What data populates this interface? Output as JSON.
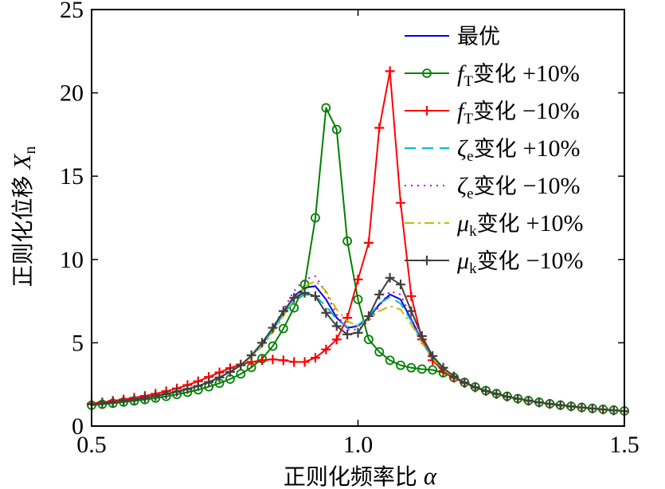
{
  "chart_data": {
    "type": "line",
    "title": "",
    "xlabel": "正则化频率比",
    "xlabel_symbol": "α",
    "ylabel": "正则化位移",
    "ylabel_symbol": "X",
    "ylabel_subscript": "n",
    "xlim": [
      0.5,
      1.5
    ],
    "ylim": [
      0,
      25
    ],
    "xticks": [
      0.5,
      1.0,
      1.5
    ],
    "xtick_labels": [
      "0.5",
      "1.0",
      "1.5"
    ],
    "yticks": [
      0,
      5,
      10,
      15,
      20,
      25
    ],
    "ytick_labels": [
      "0",
      "5",
      "10",
      "15",
      "20",
      "25"
    ],
    "grid": false,
    "legend_position": "top-right",
    "series": [
      {
        "name": "最优",
        "legend": {
          "symbol": "",
          "sub": "",
          "change": "最优",
          "pct": ""
        },
        "color": "#0000ee",
        "dash": "",
        "marker": "none",
        "width": 2,
        "x": [
          0.5,
          0.52,
          0.54,
          0.56,
          0.58,
          0.6,
          0.62,
          0.64,
          0.66,
          0.68,
          0.7,
          0.72,
          0.74,
          0.76,
          0.78,
          0.8,
          0.82,
          0.84,
          0.86,
          0.88,
          0.9,
          0.92,
          0.94,
          0.96,
          0.98,
          1.0,
          1.02,
          1.04,
          1.06,
          1.08,
          1.1,
          1.12,
          1.14,
          1.16,
          1.18,
          1.2,
          1.22,
          1.24,
          1.26,
          1.28,
          1.3,
          1.32,
          1.34,
          1.36,
          1.38,
          1.4,
          1.42,
          1.44,
          1.46,
          1.48,
          1.5
        ],
        "y": [
          1.3,
          1.37,
          1.44,
          1.52,
          1.6,
          1.69,
          1.8,
          1.92,
          2.06,
          2.22,
          2.41,
          2.64,
          2.92,
          3.25,
          3.65,
          4.2,
          4.9,
          5.8,
          6.8,
          7.8,
          8.3,
          8.4,
          7.6,
          6.5,
          5.9,
          6.0,
          6.5,
          7.3,
          7.9,
          7.6,
          6.4,
          5.1,
          4.1,
          3.45,
          2.95,
          2.6,
          2.32,
          2.1,
          1.92,
          1.77,
          1.64,
          1.53,
          1.43,
          1.34,
          1.26,
          1.19,
          1.12,
          1.06,
          1.0,
          0.95,
          0.9
        ]
      },
      {
        "name": "fT变化 +10%",
        "legend": {
          "symbol": "f",
          "sub": "T",
          "change": "变化",
          "pct": "+10%"
        },
        "color": "#008000",
        "dash": "",
        "marker": "circle",
        "width": 2,
        "x": [
          0.5,
          0.52,
          0.54,
          0.56,
          0.58,
          0.6,
          0.62,
          0.64,
          0.66,
          0.68,
          0.7,
          0.72,
          0.74,
          0.76,
          0.78,
          0.8,
          0.82,
          0.84,
          0.86,
          0.88,
          0.9,
          0.92,
          0.94,
          0.96,
          0.98,
          1.0,
          1.02,
          1.04,
          1.06,
          1.08,
          1.1,
          1.12,
          1.14,
          1.16,
          1.18,
          1.2,
          1.22,
          1.24,
          1.26,
          1.28,
          1.3,
          1.32,
          1.34,
          1.36,
          1.38,
          1.4,
          1.42,
          1.44,
          1.46,
          1.48,
          1.5
        ],
        "y": [
          1.25,
          1.31,
          1.37,
          1.44,
          1.51,
          1.59,
          1.68,
          1.78,
          1.9,
          2.03,
          2.18,
          2.36,
          2.57,
          2.82,
          3.13,
          3.52,
          4.05,
          4.8,
          5.85,
          7.1,
          8.5,
          12.5,
          19.1,
          17.8,
          11.1,
          7.6,
          5.2,
          4.45,
          3.95,
          3.65,
          3.5,
          3.42,
          3.37,
          3.2,
          2.92,
          2.62,
          2.35,
          2.13,
          1.95,
          1.79,
          1.65,
          1.53,
          1.43,
          1.34,
          1.26,
          1.19,
          1.12,
          1.06,
          1.01,
          0.96,
          0.91
        ]
      },
      {
        "name": "fT变化 -10%",
        "legend": {
          "symbol": "f",
          "sub": "T",
          "change": "变化",
          "pct": "−10%"
        },
        "color": "#ff0000",
        "dash": "",
        "marker": "plus",
        "width": 2,
        "x": [
          0.5,
          0.52,
          0.54,
          0.56,
          0.58,
          0.6,
          0.62,
          0.64,
          0.66,
          0.68,
          0.7,
          0.72,
          0.74,
          0.76,
          0.78,
          0.8,
          0.82,
          0.84,
          0.86,
          0.88,
          0.9,
          0.92,
          0.94,
          0.96,
          0.98,
          1.0,
          1.02,
          1.04,
          1.06,
          1.08,
          1.1,
          1.12,
          1.14,
          1.16,
          1.18,
          1.2,
          1.22,
          1.24,
          1.26,
          1.28,
          1.3,
          1.32,
          1.34,
          1.36,
          1.38,
          1.4,
          1.42,
          1.44,
          1.46,
          1.48,
          1.5
        ],
        "y": [
          1.35,
          1.43,
          1.51,
          1.6,
          1.7,
          1.81,
          1.94,
          2.09,
          2.26,
          2.46,
          2.69,
          2.95,
          3.22,
          3.48,
          3.7,
          3.85,
          3.95,
          4.0,
          3.95,
          3.85,
          3.85,
          4.1,
          4.6,
          5.2,
          6.5,
          8.8,
          11.0,
          17.9,
          21.3,
          13.4,
          7.8,
          5.2,
          3.95,
          3.3,
          2.9,
          2.58,
          2.32,
          2.1,
          1.92,
          1.76,
          1.63,
          1.51,
          1.41,
          1.32,
          1.24,
          1.17,
          1.11,
          1.05,
          0.99,
          0.94,
          0.89
        ]
      },
      {
        "name": "ζe变化 +10%",
        "legend": {
          "symbol": "ζ",
          "sub": "e",
          "change": "变化",
          "pct": "+10%"
        },
        "color": "#00bfbf",
        "dash": "14,8",
        "marker": "none",
        "width": 2,
        "x": [
          0.5,
          0.52,
          0.54,
          0.56,
          0.58,
          0.6,
          0.62,
          0.64,
          0.66,
          0.68,
          0.7,
          0.72,
          0.74,
          0.76,
          0.78,
          0.8,
          0.82,
          0.84,
          0.86,
          0.88,
          0.9,
          0.92,
          0.94,
          0.96,
          0.98,
          1.0,
          1.02,
          1.04,
          1.06,
          1.08,
          1.1,
          1.12,
          1.14,
          1.16,
          1.18,
          1.2,
          1.22,
          1.24,
          1.26,
          1.28,
          1.3,
          1.32,
          1.34,
          1.36,
          1.38,
          1.4,
          1.42,
          1.44,
          1.46,
          1.48,
          1.5
        ],
        "y": [
          1.3,
          1.37,
          1.44,
          1.52,
          1.6,
          1.69,
          1.8,
          1.92,
          2.06,
          2.22,
          2.41,
          2.64,
          2.92,
          3.25,
          3.65,
          4.2,
          4.9,
          5.75,
          6.7,
          7.5,
          7.9,
          7.8,
          7.2,
          6.4,
          5.95,
          6.05,
          6.6,
          7.35,
          7.75,
          7.35,
          6.3,
          5.05,
          4.05,
          3.42,
          2.95,
          2.6,
          2.32,
          2.1,
          1.92,
          1.77,
          1.64,
          1.53,
          1.43,
          1.34,
          1.26,
          1.19,
          1.12,
          1.06,
          1.0,
          0.95,
          0.9
        ]
      },
      {
        "name": "ζe变化 -10%",
        "legend": {
          "symbol": "ζ",
          "sub": "e",
          "change": "变化",
          "pct": "−10%"
        },
        "color": "#bf00bf",
        "dash": "2,6",
        "marker": "none",
        "width": 2,
        "x": [
          0.5,
          0.52,
          0.54,
          0.56,
          0.58,
          0.6,
          0.62,
          0.64,
          0.66,
          0.68,
          0.7,
          0.72,
          0.74,
          0.76,
          0.78,
          0.8,
          0.82,
          0.84,
          0.86,
          0.88,
          0.9,
          0.92,
          0.94,
          0.96,
          0.98,
          1.0,
          1.02,
          1.04,
          1.06,
          1.08,
          1.1,
          1.12,
          1.14,
          1.16,
          1.18,
          1.2,
          1.22,
          1.24,
          1.26,
          1.28,
          1.3,
          1.32,
          1.34,
          1.36,
          1.38,
          1.4,
          1.42,
          1.44,
          1.46,
          1.48,
          1.5
        ],
        "y": [
          1.3,
          1.37,
          1.44,
          1.52,
          1.6,
          1.69,
          1.8,
          1.92,
          2.06,
          2.22,
          2.41,
          2.64,
          2.92,
          3.25,
          3.65,
          4.2,
          4.9,
          5.9,
          7.0,
          8.1,
          8.8,
          9.0,
          8.0,
          6.7,
          5.8,
          5.8,
          6.3,
          7.2,
          8.1,
          7.9,
          6.5,
          5.15,
          4.1,
          3.45,
          2.95,
          2.6,
          2.32,
          2.1,
          1.92,
          1.77,
          1.64,
          1.53,
          1.43,
          1.34,
          1.26,
          1.19,
          1.12,
          1.06,
          1.0,
          0.95,
          0.9
        ]
      },
      {
        "name": "μk变化 +10%",
        "legend": {
          "symbol": "μ",
          "sub": "k",
          "change": "变化",
          "pct": "+10%"
        },
        "color": "#bfbf00",
        "dash": "12,5,3,5",
        "marker": "none",
        "width": 2,
        "x": [
          0.5,
          0.52,
          0.54,
          0.56,
          0.58,
          0.6,
          0.62,
          0.64,
          0.66,
          0.68,
          0.7,
          0.72,
          0.74,
          0.76,
          0.78,
          0.8,
          0.82,
          0.84,
          0.86,
          0.88,
          0.9,
          0.92,
          0.94,
          0.96,
          0.98,
          1.0,
          1.02,
          1.04,
          1.06,
          1.08,
          1.1,
          1.12,
          1.14,
          1.16,
          1.18,
          1.2,
          1.22,
          1.24,
          1.26,
          1.28,
          1.3,
          1.32,
          1.34,
          1.36,
          1.38,
          1.4,
          1.42,
          1.44,
          1.46,
          1.48,
          1.5
        ],
        "y": [
          1.3,
          1.37,
          1.44,
          1.52,
          1.6,
          1.69,
          1.8,
          1.92,
          2.06,
          2.22,
          2.41,
          2.64,
          2.92,
          3.25,
          3.65,
          4.15,
          4.8,
          5.6,
          6.6,
          7.6,
          8.4,
          8.7,
          8.1,
          7.0,
          6.3,
          6.0,
          6.4,
          6.9,
          7.2,
          7.0,
          6.1,
          5.0,
          4.05,
          3.4,
          2.93,
          2.58,
          2.3,
          2.08,
          1.9,
          1.75,
          1.62,
          1.51,
          1.41,
          1.32,
          1.24,
          1.17,
          1.11,
          1.05,
          0.99,
          0.94,
          0.89
        ]
      },
      {
        "name": "μk变化 -10%",
        "legend": {
          "symbol": "μ",
          "sub": "k",
          "change": "变化",
          "pct": "−10%"
        },
        "color": "#404040",
        "dash": "",
        "marker": "plus",
        "width": 2,
        "x": [
          0.5,
          0.52,
          0.54,
          0.56,
          0.58,
          0.6,
          0.62,
          0.64,
          0.66,
          0.68,
          0.7,
          0.72,
          0.74,
          0.76,
          0.78,
          0.8,
          0.82,
          0.84,
          0.86,
          0.88,
          0.9,
          0.92,
          0.94,
          0.96,
          0.98,
          1.0,
          1.02,
          1.04,
          1.06,
          1.08,
          1.1,
          1.12,
          1.14,
          1.16,
          1.18,
          1.2,
          1.22,
          1.24,
          1.26,
          1.28,
          1.3,
          1.32,
          1.34,
          1.36,
          1.38,
          1.4,
          1.42,
          1.44,
          1.46,
          1.48,
          1.5
        ],
        "y": [
          1.3,
          1.37,
          1.44,
          1.52,
          1.6,
          1.69,
          1.8,
          1.92,
          2.06,
          2.22,
          2.41,
          2.64,
          2.92,
          3.25,
          3.65,
          4.25,
          5.0,
          5.9,
          6.9,
          7.7,
          8.0,
          7.8,
          6.8,
          6.0,
          5.5,
          5.6,
          6.6,
          7.9,
          8.9,
          8.5,
          6.9,
          5.4,
          4.2,
          3.5,
          2.98,
          2.62,
          2.33,
          2.11,
          1.93,
          1.77,
          1.64,
          1.53,
          1.43,
          1.34,
          1.26,
          1.19,
          1.12,
          1.06,
          1.0,
          0.95,
          0.9
        ]
      }
    ]
  }
}
